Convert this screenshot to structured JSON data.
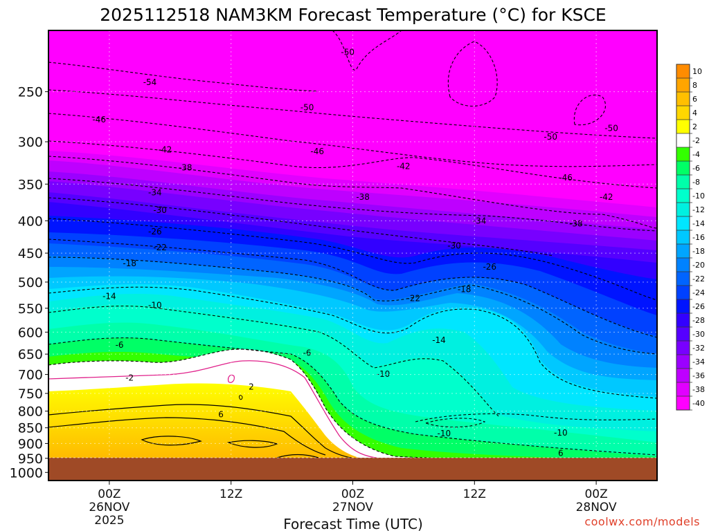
{
  "chart_data": {
    "type": "heatmap",
    "title": "2025112518 NAM3KM Forecast Temperature (°C) for KSCE",
    "xlabel": "Forecast Time (UTC)",
    "ylabel": "",
    "y_ticks": [
      "250",
      "300",
      "350",
      "400",
      "450",
      "500",
      "550",
      "600",
      "650",
      "700",
      "750",
      "800",
      "850",
      "900",
      "950",
      "1000"
    ],
    "y_tick_values": [
      250,
      300,
      350,
      400,
      450,
      500,
      550,
      600,
      650,
      700,
      750,
      800,
      850,
      900,
      950,
      1000
    ],
    "x_ticks": [
      {
        "hour": 6,
        "l1": "00Z",
        "l2": "26NOV",
        "l3": "2025"
      },
      {
        "hour": 18,
        "l1": "12Z",
        "l2": "",
        "l3": ""
      },
      {
        "hour": 30,
        "l1": "00Z",
        "l2": "27NOV",
        "l3": ""
      },
      {
        "hour": 42,
        "l1": "12Z",
        "l2": "",
        "l3": ""
      },
      {
        "hour": 54,
        "l1": "00Z",
        "l2": "28NOV",
        "l3": ""
      }
    ],
    "x_range_hours": [
      0,
      60
    ],
    "y_range_hpa": [
      200,
      1030
    ],
    "colorbar_labels": [
      "10",
      "8",
      "6",
      "4",
      "2",
      "-2",
      "-4",
      "-6",
      "-8",
      "-10",
      "-12",
      "-14",
      "-16",
      "-18",
      "-20",
      "-22",
      "-24",
      "-26",
      "-28",
      "-30",
      "-32",
      "-34",
      "-36",
      "-38",
      "-40"
    ],
    "colorbar_colors": [
      "#ff8c00",
      "#ffa500",
      "#ffbf00",
      "#ffd700",
      "#ffff00",
      "#ffffff",
      "#33ff00",
      "#00ff66",
      "#00ffaa",
      "#00ffcc",
      "#00f0e0",
      "#00e6ff",
      "#00c8ff",
      "#00a5ff",
      "#0082ff",
      "#0064ff",
      "#0041ff",
      "#0014ff",
      "#3200ff",
      "#5500ff",
      "#7800ff",
      "#9b00ff",
      "#be00ff",
      "#e100ff",
      "#ff00ff"
    ],
    "contour_labels": [
      {
        "t": "-50",
        "hour": 29.5,
        "p": 216
      },
      {
        "t": "-54",
        "hour": 10.0,
        "p": 241
      },
      {
        "t": "-46",
        "hour": 5.0,
        "p": 276
      },
      {
        "t": "-50",
        "hour": 25.5,
        "p": 264
      },
      {
        "t": "-42",
        "hour": 11.5,
        "p": 308
      },
      {
        "t": "-46",
        "hour": 26.5,
        "p": 310
      },
      {
        "t": "-50",
        "hour": 49.5,
        "p": 294
      },
      {
        "t": "-50",
        "hour": 55.5,
        "p": 285
      },
      {
        "t": "-38",
        "hour": 13.5,
        "p": 329
      },
      {
        "t": "-42",
        "hour": 35.0,
        "p": 327
      },
      {
        "t": "-46",
        "hour": 51.0,
        "p": 341
      },
      {
        "t": "-34",
        "hour": 10.5,
        "p": 360
      },
      {
        "t": "-38",
        "hour": 31.0,
        "p": 366
      },
      {
        "t": "-42",
        "hour": 55.0,
        "p": 366
      },
      {
        "t": "-30",
        "hour": 11.0,
        "p": 384
      },
      {
        "t": "-26",
        "hour": 10.5,
        "p": 415
      },
      {
        "t": "-34",
        "hour": 42.5,
        "p": 399
      },
      {
        "t": "-38",
        "hour": 52.0,
        "p": 403
      },
      {
        "t": "-22",
        "hour": 11.0,
        "p": 440
      },
      {
        "t": "-30",
        "hour": 40.0,
        "p": 437
      },
      {
        "t": "-18",
        "hour": 8.0,
        "p": 466
      },
      {
        "t": "-26",
        "hour": 43.5,
        "p": 472
      },
      {
        "t": "-14",
        "hour": 6.0,
        "p": 525
      },
      {
        "t": "-10",
        "hour": 10.5,
        "p": 543
      },
      {
        "t": "-22",
        "hour": 36.0,
        "p": 529
      },
      {
        "t": "-18",
        "hour": 41.0,
        "p": 512
      },
      {
        "t": "-6",
        "hour": 7.0,
        "p": 627
      },
      {
        "t": "-6",
        "hour": 25.5,
        "p": 646
      },
      {
        "t": "-14",
        "hour": 38.5,
        "p": 616
      },
      {
        "t": "-2",
        "hour": 8.0,
        "p": 707
      },
      {
        "t": "-10",
        "hour": 33.0,
        "p": 697
      },
      {
        "t": "2",
        "hour": 20.0,
        "p": 730
      },
      {
        "t": "6",
        "hour": 17.0,
        "p": 808
      },
      {
        "t": "-10",
        "hour": 39.0,
        "p": 866
      },
      {
        "t": "-10",
        "hour": 50.5,
        "p": 864
      },
      {
        "t": "6",
        "hour": 50.5,
        "p": 930
      }
    ]
  },
  "credit": "coolwx.com/models"
}
